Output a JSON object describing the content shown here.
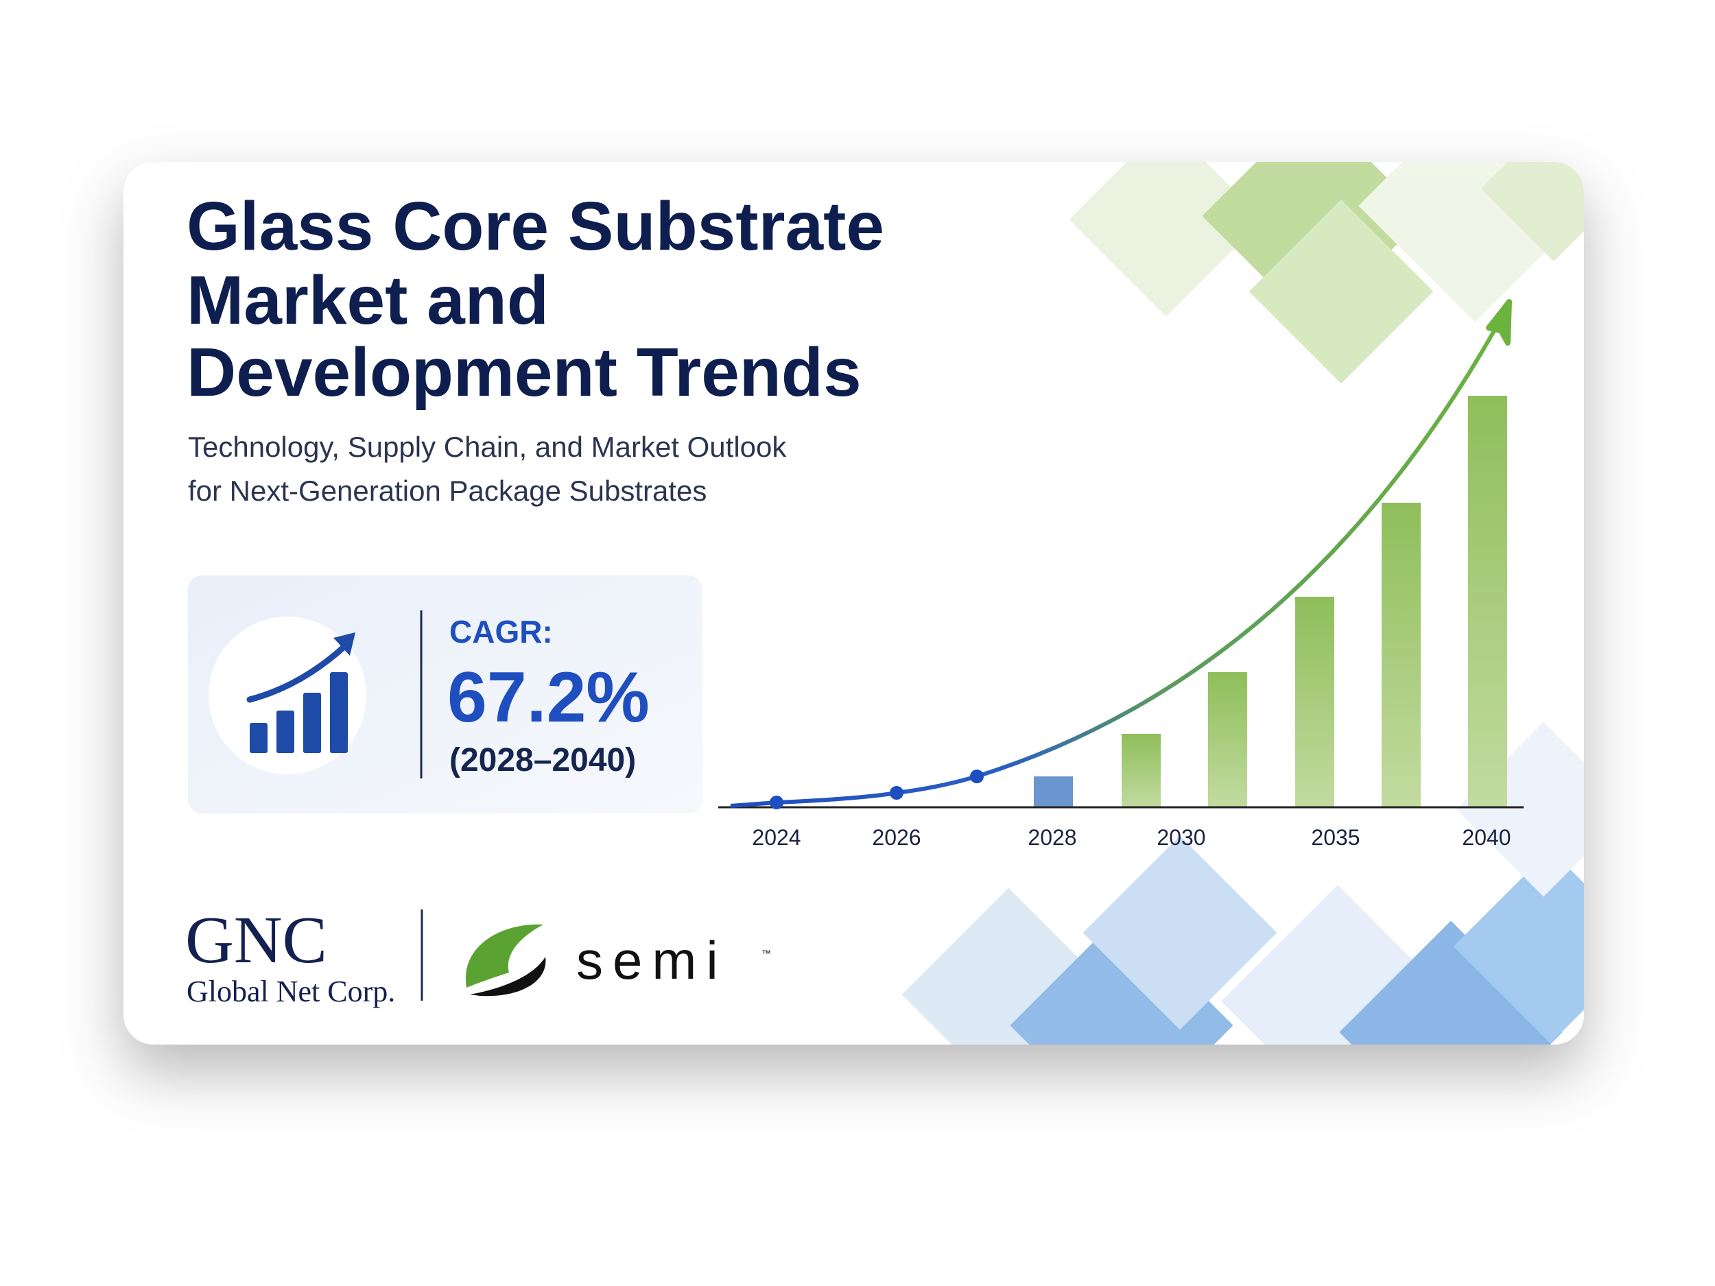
{
  "header": {
    "title": [
      "Glass Core Substrate",
      "Market and",
      "Development Trends"
    ],
    "subtitle": [
      "Technology, Supply Chain, and Market Outlook",
      "for Next-Generation Package Substrates"
    ]
  },
  "cagr": {
    "label": "CAGR:",
    "value": "67.2%",
    "period": "(2028–2040)"
  },
  "chart": {
    "x_labels": [
      "2024",
      "2026",
      "2028",
      "2030",
      "2035",
      "2040"
    ]
  },
  "logos": {
    "gnc": "GNC",
    "gnc_name": "Global Net Corp.",
    "semi": "semi",
    "trademark": "™"
  }
}
